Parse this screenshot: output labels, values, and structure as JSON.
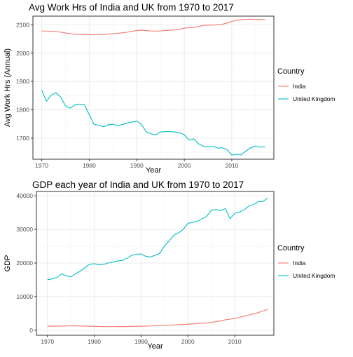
{
  "charts": [
    {
      "title": "Avg Work Hrs of India and UK from 1970 to 2017",
      "xlabel": "Year",
      "ylabel": "Avg Work Hrs (Annual)",
      "legend_title": "Country",
      "legend": [
        "India",
        "United Kingdom"
      ],
      "x_ticks": [
        "1970",
        "1980",
        "1990",
        "2000",
        "2010"
      ],
      "y_ticks": [
        "1700",
        "1800",
        "1900",
        "2000",
        "2100"
      ]
    },
    {
      "title": "GDP each year of India and UK from 1970 to 2017",
      "xlabel": "Year",
      "ylabel": "GDP",
      "legend_title": "Country",
      "legend": [
        "India",
        "United Kingdom"
      ],
      "x_ticks": [
        "1970",
        "1980",
        "1990",
        "2000",
        "2010"
      ],
      "y_ticks": [
        "0",
        "10000",
        "20000",
        "30000",
        "40000"
      ]
    }
  ],
  "chart_data": [
    {
      "type": "line",
      "title": "Avg Work Hrs of India and UK from 1970 to 2017",
      "xlabel": "Year",
      "ylabel": "Avg Work Hrs (Annual)",
      "xlim": [
        1968.15,
        2018.85
      ],
      "ylim": [
        1625.6,
        2130.6
      ],
      "x_ticks": [
        1970,
        1980,
        1990,
        2000,
        2010
      ],
      "y_ticks": [
        1700,
        1800,
        1900,
        2000,
        2100
      ],
      "grid": true,
      "legend_position": "right",
      "x": [
        1970,
        1971,
        1972,
        1973,
        1974,
        1975,
        1976,
        1977,
        1978,
        1979,
        1980,
        1981,
        1982,
        1983,
        1984,
        1985,
        1986,
        1987,
        1988,
        1989,
        1990,
        1991,
        1992,
        1993,
        1994,
        1995,
        1996,
        1997,
        1998,
        1999,
        2000,
        2001,
        2002,
        2003,
        2004,
        2005,
        2006,
        2007,
        2008,
        2009,
        2010,
        2011,
        2012,
        2013,
        2014,
        2015,
        2016,
        2017
      ],
      "series": [
        {
          "name": "India",
          "color": "#F8766D",
          "values": [
            2078,
            2078,
            2077,
            2076,
            2074,
            2071,
            2069,
            2067,
            2066,
            2066,
            2066,
            2065,
            2065,
            2066,
            2067,
            2069,
            2070,
            2072,
            2074,
            2077,
            2080,
            2081,
            2080,
            2078,
            2078,
            2078,
            2080,
            2081,
            2082,
            2084,
            2088,
            2090,
            2091,
            2094,
            2098,
            2099,
            2099,
            2100,
            2102,
            2106,
            2112,
            2116,
            2118,
            2119,
            2120,
            2119,
            2119,
            2119
          ]
        },
        {
          "name": "United Kingdom",
          "color": "#00BFC4",
          "values": [
            1870,
            1830,
            1852,
            1860,
            1845,
            1814,
            1806,
            1817,
            1820,
            1817,
            1783,
            1749,
            1745,
            1740,
            1747,
            1749,
            1744,
            1748,
            1753,
            1757,
            1760,
            1748,
            1722,
            1715,
            1712,
            1722,
            1723,
            1723,
            1722,
            1719,
            1712,
            1693,
            1697,
            1680,
            1672,
            1669,
            1671,
            1665,
            1666,
            1659,
            1640,
            1643,
            1641,
            1655,
            1666,
            1672,
            1668,
            1670
          ]
        }
      ]
    },
    {
      "type": "line",
      "title": "GDP each year of India and UK from 1970 to 2017",
      "xlabel": "Year",
      "ylabel": "GDP",
      "xlim": [
        1967.65,
        2018.35
      ],
      "ylim": [
        -1500,
        41300
      ],
      "x_ticks": [
        1970,
        1980,
        1990,
        2000,
        2010
      ],
      "y_ticks": [
        0,
        10000,
        20000,
        30000,
        40000
      ],
      "grid": true,
      "legend_position": "right",
      "x": [
        1970,
        1971,
        1972,
        1973,
        1974,
        1975,
        1976,
        1977,
        1978,
        1979,
        1980,
        1981,
        1982,
        1983,
        1984,
        1985,
        1986,
        1987,
        1988,
        1989,
        1990,
        1991,
        1992,
        1993,
        1994,
        1995,
        1996,
        1997,
        1998,
        1999,
        2000,
        2001,
        2002,
        2003,
        2004,
        2005,
        2006,
        2007,
        2008,
        2009,
        2010,
        2011,
        2012,
        2013,
        2014,
        2015,
        2016,
        2017
      ],
      "series": [
        {
          "name": "India",
          "color": "#F8766D",
          "values": [
            1200,
            1220,
            1210,
            1250,
            1260,
            1330,
            1300,
            1260,
            1220,
            1170,
            1140,
            1110,
            1080,
            1060,
            1060,
            1070,
            1080,
            1100,
            1150,
            1180,
            1200,
            1230,
            1270,
            1320,
            1380,
            1450,
            1520,
            1580,
            1650,
            1720,
            1800,
            1880,
            1960,
            2060,
            2200,
            2350,
            2550,
            2800,
            3100,
            3300,
            3500,
            3800,
            4200,
            4500,
            4900,
            5250,
            5700,
            6200
          ]
        },
        {
          "name": "United Kingdom",
          "color": "#00BFC4",
          "values": [
            15000,
            15300,
            15700,
            16800,
            16200,
            15900,
            16800,
            17600,
            18600,
            19600,
            19800,
            19500,
            19600,
            20000,
            20300,
            20600,
            20800,
            21400,
            22300,
            22600,
            22700,
            22000,
            21800,
            22300,
            22900,
            25100,
            26600,
            28300,
            29000,
            30000,
            31800,
            32100,
            32400,
            33200,
            33900,
            35700,
            35900,
            35600,
            36200,
            33200,
            34800,
            35200,
            35800,
            37000,
            37400,
            38300,
            38300,
            39300
          ]
        }
      ]
    }
  ]
}
